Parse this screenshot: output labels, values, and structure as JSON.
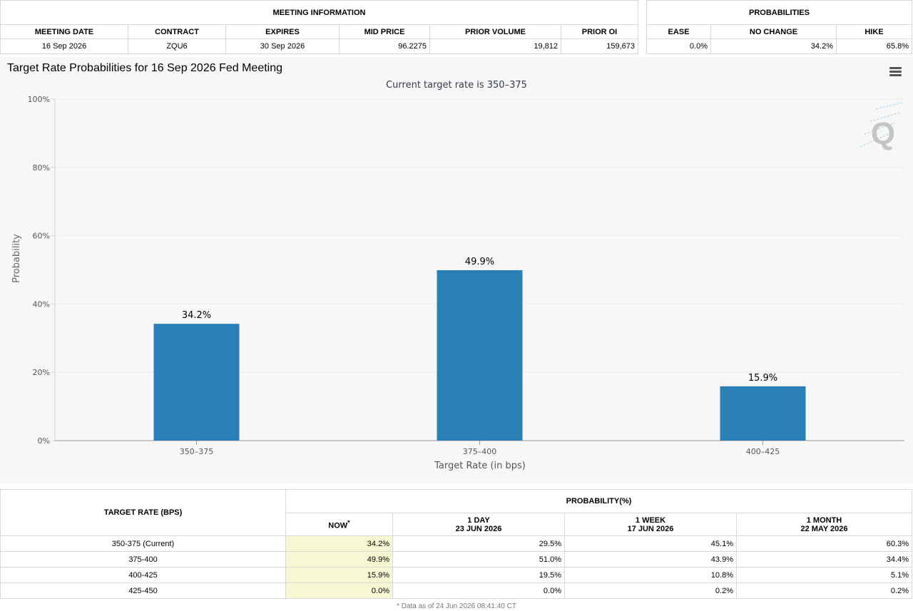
{
  "meeting_info": {
    "group_header": "MEETING INFORMATION",
    "columns": [
      "MEETING DATE",
      "CONTRACT",
      "EXPIRES",
      "MID PRICE",
      "PRIOR VOLUME",
      "PRIOR OI"
    ],
    "row": [
      "16 Sep 2026",
      "ZQU6",
      "30 Sep 2026",
      "96.2275",
      "19,812",
      "159,673"
    ]
  },
  "probabilities": {
    "group_header": "PROBABILITIES",
    "columns": [
      "EASE",
      "NO CHANGE",
      "HIKE"
    ],
    "row": [
      "0.0%",
      "34.2%",
      "65.8%"
    ]
  },
  "chart_data": {
    "type": "bar",
    "title": "Target Rate Probabilities for 16 Sep 2026 Fed Meeting",
    "subtitle": "Current target rate is 350–375",
    "categories": [
      "350–375",
      "375–400",
      "400–425"
    ],
    "values": [
      34.2,
      49.9,
      15.9
    ],
    "data_labels": [
      "34.2%",
      "49.9%",
      "15.9%"
    ],
    "xlabel": "Target Rate (in bps)",
    "ylabel": "Probability",
    "ylim": [
      0,
      100
    ],
    "yticks": [
      0,
      20,
      40,
      60,
      80,
      100
    ],
    "ytick_labels": [
      "0%",
      "20%",
      "40%",
      "60%",
      "80%",
      "100%"
    ],
    "grid": true,
    "bar_color": "#2b7fb7",
    "watermark": "Q"
  },
  "history": {
    "target_header": "TARGET RATE (BPS)",
    "prob_header": "PROBABILITY(%)",
    "now_label": "NOW",
    "now_marker": "*",
    "periods": [
      {
        "label": "1 DAY",
        "date": "23 JUN 2026"
      },
      {
        "label": "1 WEEK",
        "date": "17 JUN 2026"
      },
      {
        "label": "1 MONTH",
        "date": "22 MAY 2026"
      }
    ],
    "rows": [
      {
        "rate": "350-375 (Current)",
        "now": "34.2%",
        "day": "29.5%",
        "week": "45.1%",
        "month": "60.3%"
      },
      {
        "rate": "375-400",
        "now": "49.9%",
        "day": "51.0%",
        "week": "43.9%",
        "month": "34.4%"
      },
      {
        "rate": "400-425",
        "now": "15.9%",
        "day": "19.5%",
        "week": "10.8%",
        "month": "5.1%"
      },
      {
        "rate": "425-450",
        "now": "0.0%",
        "day": "0.0%",
        "week": "0.2%",
        "month": "0.2%"
      }
    ]
  },
  "footnote": "* Data as of 24 Jun 2026 08:41:40 CT"
}
